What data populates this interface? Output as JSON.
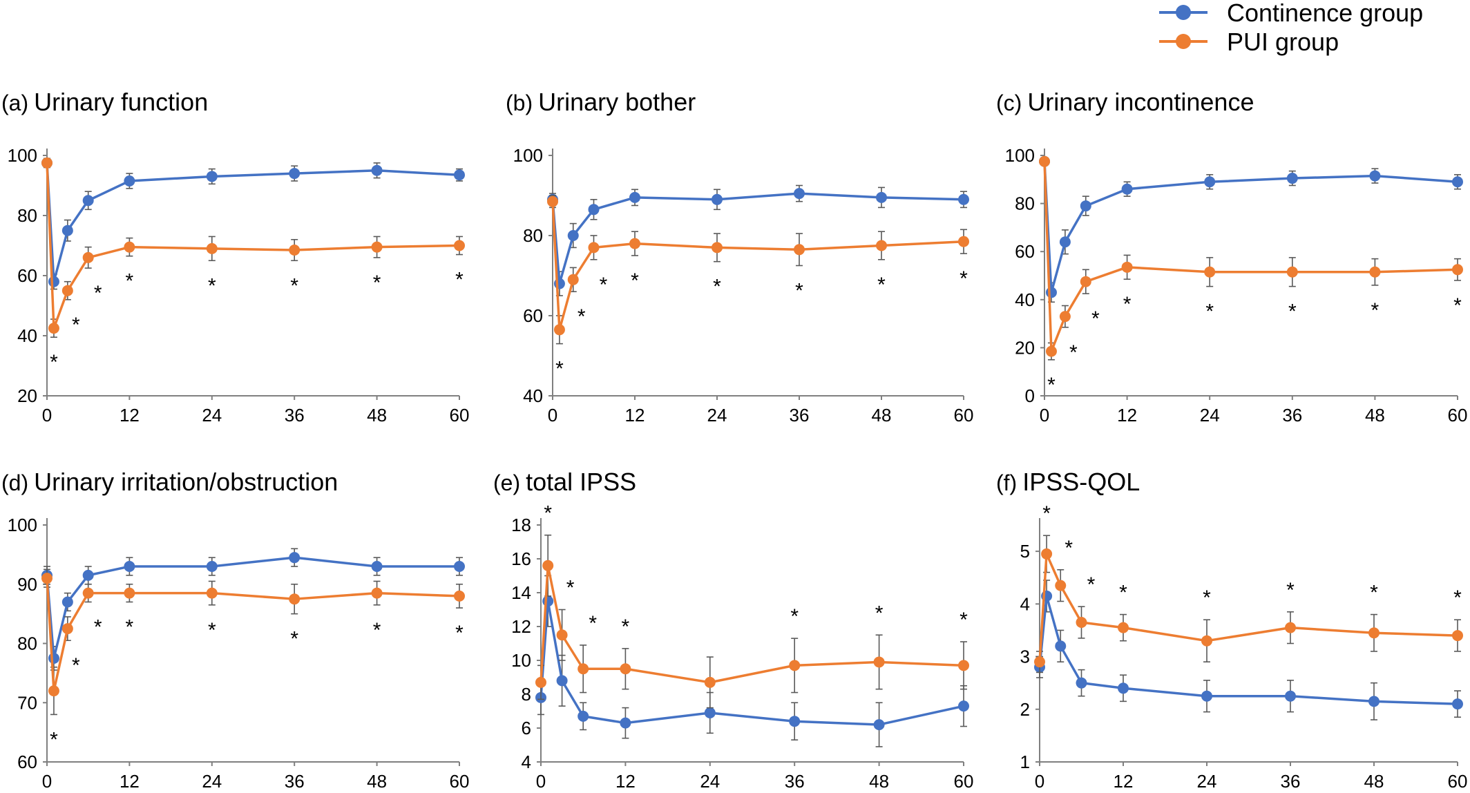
{
  "legend": {
    "position": "top-right",
    "items": [
      {
        "label": "Continence group",
        "color": "#4472C4"
      },
      {
        "label": "PUI group",
        "color": "#ED7D31"
      }
    ]
  },
  "chart_data": [
    {
      "type": "line",
      "letter": "(a)",
      "title": "Urinary function",
      "x": [
        0,
        1,
        3,
        6,
        12,
        24,
        36,
        48,
        60
      ],
      "xticks": [
        "0",
        "12",
        "24",
        "36",
        "48",
        "60"
      ],
      "yticks": [
        "20",
        "40",
        "60",
        "80",
        "100"
      ],
      "ylim": [
        20,
        100
      ],
      "series": [
        {
          "name": "Continence group",
          "color": "#4472C4",
          "values": [
            97.5,
            58,
            75,
            85,
            91.5,
            93,
            94,
            95,
            93.5
          ],
          "err": [
            1.5,
            2.5,
            3.5,
            3,
            2.5,
            2.5,
            2.5,
            2.5,
            2
          ]
        },
        {
          "name": "PUI group",
          "color": "#ED7D31",
          "values": [
            97.5,
            42.5,
            55,
            66,
            69.5,
            69,
            68.5,
            69.5,
            70
          ],
          "err": [
            1.5,
            3,
            3,
            3.5,
            3,
            4,
            3.5,
            3.5,
            3
          ]
        }
      ],
      "significance": [
        1,
        3,
        6,
        12,
        24,
        36,
        48,
        60
      ]
    },
    {
      "type": "line",
      "letter": "(b)",
      "title": "Urinary bother",
      "x": [
        0,
        1,
        3,
        6,
        12,
        24,
        36,
        48,
        60
      ],
      "xticks": [
        "0",
        "12",
        "24",
        "36",
        "48",
        "60"
      ],
      "yticks": [
        "40",
        "60",
        "80",
        "100"
      ],
      "ylim": [
        40,
        100
      ],
      "series": [
        {
          "name": "Continence group",
          "color": "#4472C4",
          "values": [
            89,
            68,
            80,
            86.5,
            89.5,
            89,
            90.5,
            89.5,
            89
          ],
          "err": [
            1.5,
            3,
            3,
            2.5,
            2,
            2.5,
            2,
            2.5,
            2
          ]
        },
        {
          "name": "PUI group",
          "color": "#ED7D31",
          "values": [
            88.5,
            56.5,
            69,
            77,
            78,
            77,
            76.5,
            77.5,
            78.5
          ],
          "err": [
            1.5,
            3.5,
            3,
            3,
            3,
            3.5,
            4,
            3.5,
            3
          ]
        }
      ],
      "significance": [
        1,
        3,
        6,
        12,
        24,
        36,
        48,
        60
      ]
    },
    {
      "type": "line",
      "letter": "(c)",
      "title": "Urinary incontinence",
      "x": [
        0,
        1,
        3,
        6,
        12,
        24,
        36,
        48,
        60
      ],
      "xticks": [
        "0",
        "12",
        "24",
        "36",
        "48",
        "60"
      ],
      "yticks": [
        "0",
        "20",
        "40",
        "60",
        "80",
        "100"
      ],
      "ylim": [
        0,
        100
      ],
      "series": [
        {
          "name": "Continence group",
          "color": "#4472C4",
          "values": [
            97.5,
            43,
            64,
            79,
            86,
            89,
            90.5,
            91.5,
            89
          ],
          "err": [
            1.5,
            4,
            5,
            4,
            3,
            3,
            3,
            3,
            3
          ]
        },
        {
          "name": "PUI group",
          "color": "#ED7D31",
          "values": [
            97.5,
            18.5,
            33,
            47.5,
            53.5,
            51.5,
            51.5,
            51.5,
            52.5
          ],
          "err": [
            1.5,
            3.5,
            4.5,
            5,
            5,
            6,
            6,
            5.5,
            4.5
          ]
        }
      ],
      "significance": [
        1,
        3,
        6,
        12,
        24,
        36,
        48,
        60
      ]
    },
    {
      "type": "line",
      "letter": "(d)",
      "title": "Urinary irritation/obstruction",
      "x": [
        0,
        1,
        3,
        6,
        12,
        24,
        36,
        48,
        60
      ],
      "xticks": [
        "0",
        "12",
        "24",
        "36",
        "48",
        "60"
      ],
      "yticks": [
        "60",
        "70",
        "80",
        "90",
        "100"
      ],
      "ylim": [
        60,
        100
      ],
      "series": [
        {
          "name": "Continence group",
          "color": "#4472C4",
          "values": [
            91.5,
            77.5,
            87,
            91.5,
            93,
            93,
            94.5,
            93,
            93
          ],
          "err": [
            1.5,
            2,
            1.5,
            1.5,
            1.5,
            1.5,
            1.5,
            1.5,
            1.5
          ]
        },
        {
          "name": "PUI group",
          "color": "#ED7D31",
          "values": [
            91,
            72,
            82.5,
            88.5,
            88.5,
            88.5,
            87.5,
            88.5,
            88
          ],
          "err": [
            1.5,
            4,
            2,
            1.5,
            1.5,
            2,
            2.5,
            2,
            2
          ]
        }
      ],
      "significance": [
        1,
        3,
        6,
        12,
        24,
        36,
        48,
        60
      ]
    },
    {
      "type": "line",
      "letter": "(e)",
      "title": "total IPSS",
      "x": [
        0,
        1,
        3,
        6,
        12,
        24,
        36,
        48,
        60
      ],
      "xticks": [
        "0",
        "12",
        "24",
        "36",
        "48",
        "60"
      ],
      "yticks": [
        "4",
        "6",
        "8",
        "10",
        "12",
        "14",
        "16",
        "18"
      ],
      "ylim": [
        4,
        18
      ],
      "series": [
        {
          "name": "Continence group",
          "color": "#4472C4",
          "values": [
            7.8,
            13.5,
            8.8,
            6.7,
            6.3,
            6.9,
            6.4,
            6.2,
            7.3
          ],
          "err": [
            1,
            1.5,
            1.5,
            0.8,
            0.9,
            1.2,
            1.1,
            1.3,
            1.2
          ]
        },
        {
          "name": "PUI group",
          "color": "#ED7D31",
          "values": [
            8.7,
            15.6,
            11.5,
            9.5,
            9.5,
            8.7,
            9.7,
            9.9,
            9.7
          ],
          "err": [
            1,
            1.8,
            1.5,
            1.4,
            1.2,
            1.5,
            1.6,
            1.6,
            1.4
          ]
        }
      ],
      "significance": [
        1,
        3,
        6,
        12,
        36,
        48,
        60
      ]
    },
    {
      "type": "line",
      "letter": "(f)",
      "title": "IPSS-QOL",
      "x": [
        0,
        1,
        3,
        6,
        12,
        24,
        36,
        48,
        60
      ],
      "xticks": [
        "0",
        "12",
        "24",
        "36",
        "48",
        "60"
      ],
      "yticks": [
        "1",
        "2",
        "3",
        "4",
        "5"
      ],
      "ylim": [
        1,
        5.5
      ],
      "series": [
        {
          "name": "Continence group",
          "color": "#4472C4",
          "values": [
            2.8,
            4.15,
            3.2,
            2.5,
            2.4,
            2.25,
            2.25,
            2.15,
            2.1
          ],
          "err": [
            0.2,
            0.3,
            0.3,
            0.25,
            0.25,
            0.3,
            0.3,
            0.35,
            0.25
          ]
        },
        {
          "name": "PUI group",
          "color": "#ED7D31",
          "values": [
            2.9,
            4.95,
            4.35,
            3.65,
            3.55,
            3.3,
            3.55,
            3.45,
            3.4
          ],
          "err": [
            0.2,
            0.35,
            0.3,
            0.3,
            0.25,
            0.4,
            0.3,
            0.35,
            0.3
          ]
        }
      ],
      "significance": [
        1,
        3,
        6,
        12,
        24,
        36,
        48,
        60
      ]
    }
  ]
}
